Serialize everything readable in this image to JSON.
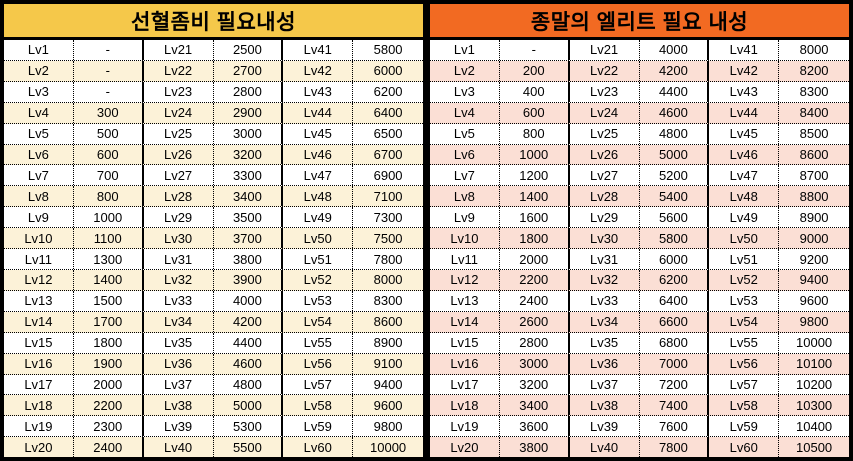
{
  "colors": {
    "left_header_bg": "#F5C84A",
    "right_header_bg": "#F26A22",
    "left_alt_bg": "#FCF2D8",
    "right_alt_bg": "#FBDFD5",
    "border": "#000000",
    "text": "#000000"
  },
  "left_table": {
    "title": "선혈좀비 필요내성",
    "column_pattern": [
      "level",
      "value",
      "level",
      "value",
      "level",
      "value"
    ],
    "rows": [
      [
        "Lv1",
        "-",
        "Lv21",
        "2500",
        "Lv41",
        "5800"
      ],
      [
        "Lv2",
        "-",
        "Lv22",
        "2700",
        "Lv42",
        "6000"
      ],
      [
        "Lv3",
        "-",
        "Lv23",
        "2800",
        "Lv43",
        "6200"
      ],
      [
        "Lv4",
        "300",
        "Lv24",
        "2900",
        "Lv44",
        "6400"
      ],
      [
        "Lv5",
        "500",
        "Lv25",
        "3000",
        "Lv45",
        "6500"
      ],
      [
        "Lv6",
        "600",
        "Lv26",
        "3200",
        "Lv46",
        "6700"
      ],
      [
        "Lv7",
        "700",
        "Lv27",
        "3300",
        "Lv47",
        "6900"
      ],
      [
        "Lv8",
        "800",
        "Lv28",
        "3400",
        "Lv48",
        "7100"
      ],
      [
        "Lv9",
        "1000",
        "Lv29",
        "3500",
        "Lv49",
        "7300"
      ],
      [
        "Lv10",
        "1100",
        "Lv30",
        "3700",
        "Lv50",
        "7500"
      ],
      [
        "Lv11",
        "1300",
        "Lv31",
        "3800",
        "Lv51",
        "7800"
      ],
      [
        "Lv12",
        "1400",
        "Lv32",
        "3900",
        "Lv52",
        "8000"
      ],
      [
        "Lv13",
        "1500",
        "Lv33",
        "4000",
        "Lv53",
        "8300"
      ],
      [
        "Lv14",
        "1700",
        "Lv34",
        "4200",
        "Lv54",
        "8600"
      ],
      [
        "Lv15",
        "1800",
        "Lv35",
        "4400",
        "Lv55",
        "8900"
      ],
      [
        "Lv16",
        "1900",
        "Lv36",
        "4600",
        "Lv56",
        "9100"
      ],
      [
        "Lv17",
        "2000",
        "Lv37",
        "4800",
        "Lv57",
        "9400"
      ],
      [
        "Lv18",
        "2200",
        "Lv38",
        "5000",
        "Lv58",
        "9600"
      ],
      [
        "Lv19",
        "2300",
        "Lv39",
        "5300",
        "Lv59",
        "9800"
      ],
      [
        "Lv20",
        "2400",
        "Lv40",
        "5500",
        "Lv60",
        "10000"
      ]
    ]
  },
  "right_table": {
    "title": "종말의 엘리트 필요 내성",
    "column_pattern": [
      "level",
      "value",
      "level",
      "value",
      "level",
      "value"
    ],
    "rows": [
      [
        "Lv1",
        "-",
        "Lv21",
        "4000",
        "Lv41",
        "8000"
      ],
      [
        "Lv2",
        "200",
        "Lv22",
        "4200",
        "Lv42",
        "8200"
      ],
      [
        "Lv3",
        "400",
        "Lv23",
        "4400",
        "Lv43",
        "8300"
      ],
      [
        "Lv4",
        "600",
        "Lv24",
        "4600",
        "Lv44",
        "8400"
      ],
      [
        "Lv5",
        "800",
        "Lv25",
        "4800",
        "Lv45",
        "8500"
      ],
      [
        "Lv6",
        "1000",
        "Lv26",
        "5000",
        "Lv46",
        "8600"
      ],
      [
        "Lv7",
        "1200",
        "Lv27",
        "5200",
        "Lv47",
        "8700"
      ],
      [
        "Lv8",
        "1400",
        "Lv28",
        "5400",
        "Lv48",
        "8800"
      ],
      [
        "Lv9",
        "1600",
        "Lv29",
        "5600",
        "Lv49",
        "8900"
      ],
      [
        "Lv10",
        "1800",
        "Lv30",
        "5800",
        "Lv50",
        "9000"
      ],
      [
        "Lv11",
        "2000",
        "Lv31",
        "6000",
        "Lv51",
        "9200"
      ],
      [
        "Lv12",
        "2200",
        "Lv32",
        "6200",
        "Lv52",
        "9400"
      ],
      [
        "Lv13",
        "2400",
        "Lv33",
        "6400",
        "Lv53",
        "9600"
      ],
      [
        "Lv14",
        "2600",
        "Lv34",
        "6600",
        "Lv54",
        "9800"
      ],
      [
        "Lv15",
        "2800",
        "Lv35",
        "6800",
        "Lv55",
        "10000"
      ],
      [
        "Lv16",
        "3000",
        "Lv36",
        "7000",
        "Lv56",
        "10100"
      ],
      [
        "Lv17",
        "3200",
        "Lv37",
        "7200",
        "Lv57",
        "10200"
      ],
      [
        "Lv18",
        "3400",
        "Lv38",
        "7400",
        "Lv58",
        "10300"
      ],
      [
        "Lv19",
        "3600",
        "Lv39",
        "7600",
        "Lv59",
        "10400"
      ],
      [
        "Lv20",
        "3800",
        "Lv40",
        "7800",
        "Lv60",
        "10500"
      ]
    ]
  }
}
